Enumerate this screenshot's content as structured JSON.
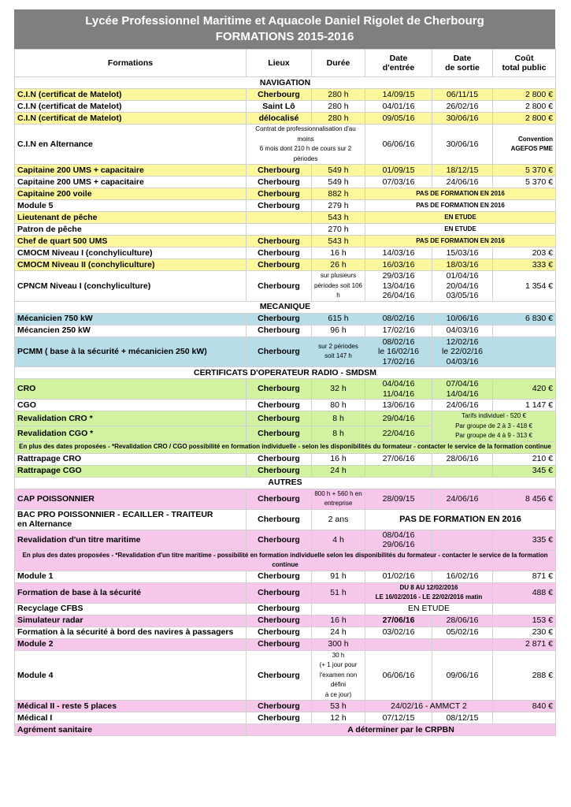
{
  "header": {
    "title": "Lycée Professionnel Maritime et Aquacole Daniel Rigolet de Cherbourg",
    "subtitle": "FORMATIONS 2015-2016"
  },
  "table": {
    "columns": [
      "Formations",
      "Lieux",
      "Durée",
      "Date\nd'entrée",
      "Date\nde sortie",
      "Coût\ntotal public"
    ],
    "rows": [
      {
        "section": "NAVIGATION"
      },
      {
        "color": "#fdf89b",
        "cells": [
          "C.I.N (certificat de Matelot)",
          "Cherbourg",
          "280 h",
          "14/09/15",
          "06/11/15",
          "2 800 €"
        ]
      },
      {
        "color": "#ffffff",
        "cells": [
          "C.I.N (certificat de Matelot)",
          "Saint Lô",
          "280 h",
          "04/01/16",
          "26/02/16",
          "2 800 €"
        ]
      },
      {
        "color": "#fdf89b",
        "cells": [
          "C.I.N (certificat de Matelot)",
          "délocalisé",
          "280 h",
          "09/05/16",
          "30/06/16",
          "2 800 €"
        ]
      },
      {
        "color": "#ffffff",
        "cells": [
          "C.I.N en Alternance",
          "Contrat de professionnalisation d'au moins\n6 mois dont 210 h de cours sur 2 périodes",
          "06/06/16",
          "30/06/16",
          "Convention\nAGEFOS PME"
        ]
      },
      {
        "color": "#fdf89b",
        "cells": [
          "Capitaine 200 UMS  + capacitaire",
          "Cherbourg",
          "549 h",
          "01/09/15",
          "18/12/15",
          "5 370 €"
        ]
      },
      {
        "color": "#ffffff",
        "cells": [
          "Capitaine 200 UMS + capacitaire",
          "Cherbourg",
          "549 h",
          "07/03/16",
          "24/06/16",
          "5 370 €"
        ]
      },
      {
        "color": "#fdf89b",
        "cells": [
          "Capitaine 200 voile",
          "Cherbourg",
          "882 h",
          "PAS DE FORMATION EN 2016"
        ]
      },
      {
        "color": "#ffffff",
        "cells": [
          "Module 5",
          "Cherbourg",
          "279 h",
          "PAS DE FORMATION EN 2016"
        ]
      },
      {
        "color": "#fdf89b",
        "cells": [
          "Lieutenant de pêche",
          null,
          "543 h",
          "EN ETUDE"
        ]
      },
      {
        "color": "#ffffff",
        "cells": [
          "Patron de pêche",
          null,
          "270 h",
          "EN ETUDE"
        ]
      },
      {
        "color": "#fdf89b",
        "cells": [
          "Chef de quart 500 UMS",
          "Cherbourg",
          "543 h",
          "PAS DE FORMATION EN 2016"
        ]
      },
      {
        "color": "#ffffff",
        "cells": [
          "CMOCM Niveau I (conchyliculture)",
          "Cherbourg",
          "16 h",
          "14/03/16",
          "15/03/16",
          "203 €"
        ]
      },
      {
        "color": "#fdf89b",
        "cells": [
          "CMOCM Niveau II (conchyliculture)",
          "Cherbourg",
          "26 h",
          "16/03/16",
          "18/03/16",
          "333 €"
        ]
      },
      {
        "color": "#ffffff",
        "cells": [
          "CPNCM Niveau I (conchyliculture)",
          "Cherbourg",
          "sur plusieurs\npériodes soit 106\nh",
          "29/03/16\n13/04/16\n26/04/16",
          "01/04/16\n20/04/16\n03/05/16",
          "1 354 €"
        ]
      },
      {
        "section": "MECANIQUE"
      },
      {
        "color": "#b7dde8",
        "cells": [
          "Mécanicien 750 kW",
          "Cherbourg",
          "615 h",
          "08/02/16",
          "10/06/16",
          "6 830 €"
        ]
      },
      {
        "color": "#ffffff",
        "cells": [
          "Mécancien 250 kW",
          "Cherbourg",
          "96 h",
          "17/02/16",
          "04/03/16",
          null
        ]
      },
      {
        "color": "#b7dde8",
        "cells": [
          "PCMM ( base à la sécurité + mécanicien 250 kW)",
          "Cherbourg",
          "sur 2 périodes\nsoit 147 h",
          "08/02/16\nle 16/02/16\n17/02/16",
          "12/02/16\nle 22/02/16\n04/03/16",
          null
        ]
      },
      {
        "section": "CERTIFICATS D'OPERATEUR RADIO - SMDSM"
      },
      {
        "color": "#d3f3a2",
        "cells": [
          "CRO",
          "Cherbourg",
          "32 h",
          "04/04/16\n11/04/16",
          "07/04/16\n14/04/16",
          "420 €"
        ]
      },
      {
        "color": "#ffffff",
        "cells": [
          "CGO",
          "Cherbourg",
          "80 h",
          "13/06/16",
          "24/06/16",
          "1 147 €"
        ]
      },
      {
        "color": "#d3f3a2",
        "cells": [
          "Revalidation CRO *",
          "Cherbourg",
          "8 h",
          "29/04/16",
          "Tarifs individuel - 520 €\nPar groupe de 2 à 3 - 418 €\nPar groupe de 4 à 9 - 313 €"
        ]
      },
      {
        "color": "#d3f3a2",
        "cells": [
          "Revalidation CGO *",
          "Cherbourg",
          "8 h",
          "22/04/16"
        ]
      },
      {
        "color": "#d3f3a2",
        "note": "En plus des dates proposées - *Revalidation CRO / CGO possibilité en formation individuelle - selon les disponibilités du formateur - contacter le service de la formation continue"
      },
      {
        "color": "#ffffff",
        "cells": [
          "Rattrapage CRO",
          "Cherbourg",
          "16 h",
          "27/06/16",
          "28/06/16",
          "210 €"
        ]
      },
      {
        "color": "#d3f3a2",
        "cells": [
          "Rattrapage CGO",
          "Cherbourg",
          "24 h",
          null,
          null,
          "345 €"
        ]
      },
      {
        "section": "AUTRES"
      },
      {
        "color": "#f8c8ec",
        "cells": [
          "CAP POISSONNIER",
          "Cherbourg",
          "800 h + 560 h en\nentreprise",
          "28/09/15",
          "24/06/16",
          "8 456 €"
        ]
      },
      {
        "color": "#ffffff",
        "cells": [
          "BAC PRO POISSONNIER - ECAILLER - TRAITEUR\nen Alternance",
          "Cherbourg",
          "2 ans",
          "PAS DE FORMATION EN 2016"
        ]
      },
      {
        "color": "#f8c8ec",
        "cells": [
          "Revalidation d'un titre maritime",
          "Cherbourg",
          "4 h",
          "08/04/16\n29/06/16",
          null,
          "335 €"
        ]
      },
      {
        "color": "#f8c8ec",
        "note": "En plus des dates proposées - *Revalidation d'un titre maritime - possibilité en formation individuelle selon les disponibilités du formateur - contacter le service de la formation continue"
      },
      {
        "color": "#ffffff",
        "cells": [
          "Module 1",
          "Cherbourg",
          "91 h",
          "01/02/16",
          "16/02/16",
          "871 €"
        ]
      },
      {
        "color": "#f8c8ec",
        "cells": [
          "Formation de base à la sécurité",
          "Cherbourg",
          "51 h",
          "DU 8 AU 12/02/2016\nLE 16/02/2016 - LE 22/02/2016 matin",
          "488 €"
        ]
      },
      {
        "color": "#ffffff",
        "cells": [
          "Recyclage CFBS",
          "Cherbourg",
          null,
          "EN ETUDE",
          null
        ]
      },
      {
        "color": "#f8c8ec",
        "cells": [
          "Simulateur radar",
          "Cherbourg",
          "16 h",
          "27/06/16",
          "28/06/16",
          "153 €"
        ]
      },
      {
        "color": "#ffffff",
        "cells": [
          "Formation à la sécurité à bord des navires à passagers",
          "Cherbourg",
          "24 h",
          "03/02/16",
          "05/02/16",
          "230 €"
        ]
      },
      {
        "color": "#f8c8ec",
        "cells": [
          "Module 2",
          "Cherbourg",
          "300 h",
          null,
          null,
          "2 871 €"
        ]
      },
      {
        "color": "#ffffff",
        "cells": [
          "Module 4",
          "Cherbourg",
          "30 h\n(+ 1 jour pour\nl'examen non défini\nà ce jour)",
          "06/06/16",
          "09/06/16",
          "288 €"
        ]
      },
      {
        "color": "#f8c8ec",
        "cells": [
          "Médical II - reste 5 places",
          "Cherbourg",
          "53 h",
          "24/02/16 - AMMCT 2",
          "840 €"
        ]
      },
      {
        "color": "#ffffff",
        "cells": [
          "Médical I",
          "Cherbourg",
          "12 h",
          "07/12/15",
          "08/12/15",
          null
        ]
      },
      {
        "color": "#f8c8ec",
        "cells": [
          "Agrément sanitaire",
          "A déterminer par le CRPBN"
        ]
      }
    ]
  }
}
